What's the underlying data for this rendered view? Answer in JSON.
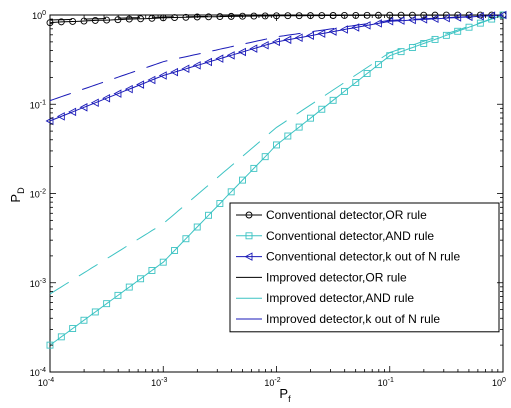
{
  "chart_data": {
    "type": "line",
    "xlabel": "P",
    "xlabel_sub": "f",
    "ylabel": "P",
    "ylabel_sub": "D",
    "x_scale": "log",
    "y_scale": "log",
    "xlim": [
      0.0001,
      1
    ],
    "ylim": [
      0.0001,
      1
    ],
    "x_ticks": [
      {
        "base": "10",
        "exp": "-4"
      },
      {
        "base": "10",
        "exp": "-3"
      },
      {
        "base": "10",
        "exp": "-2"
      },
      {
        "base": "10",
        "exp": "-1"
      },
      {
        "base": "10",
        "exp": "0"
      }
    ],
    "y_ticks": [
      {
        "base": "10",
        "exp": "-4"
      },
      {
        "base": "10",
        "exp": "-3"
      },
      {
        "base": "10",
        "exp": "-2"
      },
      {
        "base": "10",
        "exp": "-1"
      },
      {
        "base": "10",
        "exp": "0"
      }
    ],
    "grid": false,
    "legend_position": "lower-right",
    "series": [
      {
        "name": "Conventional detector,OR rule",
        "color": "#000000",
        "marker": "circle",
        "line_style": "solid",
        "x": [
          0.0001,
          0.00013,
          0.00018,
          0.00025,
          0.00035,
          0.0005,
          0.0007,
          0.001,
          0.002,
          0.005,
          0.01,
          0.05,
          0.1,
          0.5,
          1
        ],
        "y": [
          0.82,
          0.84,
          0.85,
          0.87,
          0.88,
          0.9,
          0.91,
          0.93,
          0.95,
          0.97,
          0.98,
          0.99,
          0.995,
          0.998,
          1.0
        ]
      },
      {
        "name": "Conventional detector,AND rule",
        "color": "#3cc3c3",
        "marker": "square",
        "line_style": "solid",
        "x": [
          0.0001,
          0.001,
          0.01,
          0.1,
          1
        ],
        "y": [
          0.0002,
          0.0017,
          0.035,
          0.35,
          1.0
        ]
      },
      {
        "name": "Conventional detector,k out of N rule",
        "color": "#1a1ab8",
        "marker": "triangle-left",
        "line_style": "solid",
        "x": [
          0.0001,
          0.001,
          0.01,
          0.1,
          1
        ],
        "y": [
          0.065,
          0.21,
          0.5,
          0.85,
          1.0
        ]
      },
      {
        "name": "Improved detector,OR rule",
        "color": "#000000",
        "marker": "none",
        "line_style": "dashed",
        "x": [
          0.0001,
          0.001,
          0.01,
          0.1,
          1
        ],
        "y": [
          0.88,
          0.95,
          0.985,
          0.997,
          1.0
        ]
      },
      {
        "name": "Improved detector,AND rule",
        "color": "#3cc3c3",
        "marker": "none",
        "line_style": "dashed",
        "x": [
          0.0001,
          0.001,
          0.01,
          0.1,
          1
        ],
        "y": [
          0.00075,
          0.0046,
          0.055,
          0.38,
          1.0
        ]
      },
      {
        "name": "Improved detector,k out of N rule",
        "color": "#1a1ab8",
        "marker": "none",
        "line_style": "dashed",
        "x": [
          0.0001,
          0.001,
          0.01,
          0.1,
          1
        ],
        "y": [
          0.11,
          0.3,
          0.57,
          0.87,
          1.0
        ]
      }
    ]
  }
}
